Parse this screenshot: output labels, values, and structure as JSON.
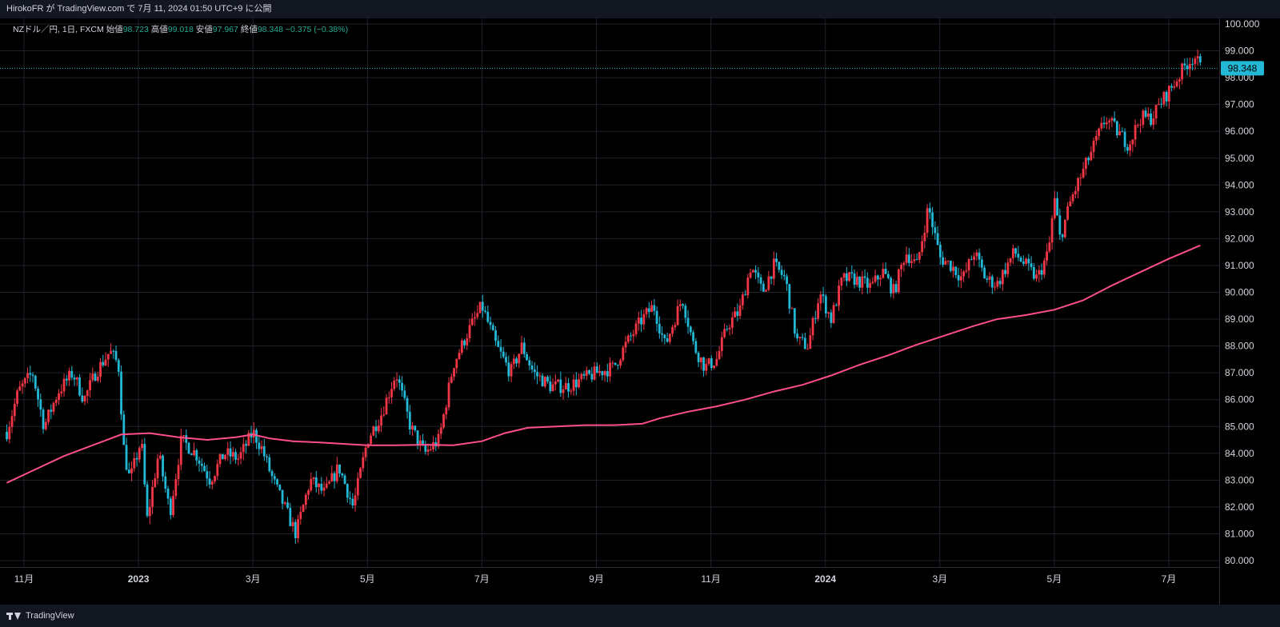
{
  "header": {
    "publish_text": "HirokoFR が TradingView.com で 7月 11, 2024 01:50 UTC+9 に公開"
  },
  "legend": {
    "symbol": "NZドル／円, 1日, FXCM",
    "open_label": "始値",
    "open": "98.723",
    "high_label": "高値",
    "high": "99.018",
    "low_label": "安値",
    "low": "97.967",
    "close_label": "終値",
    "close": "98.348",
    "change": "−0.375 (−0.38%)"
  },
  "footer": {
    "brand": "TradingView"
  },
  "colors": {
    "up": "#f23645",
    "down": "#22b8d6",
    "ma": "#ff4f8b",
    "grid": "#1e222d",
    "price_tag_bg": "#22b8d6",
    "background": "#000000"
  },
  "chart_data": {
    "type": "candlestick",
    "ylim": [
      80,
      100
    ],
    "y_ticks": [
      "80.000",
      "81.000",
      "82.000",
      "83.000",
      "84.000",
      "85.000",
      "86.000",
      "87.000",
      "88.000",
      "89.000",
      "90.000",
      "91.000",
      "92.000",
      "93.000",
      "94.000",
      "95.000",
      "96.000",
      "97.000",
      "98.000",
      "99.000",
      "100.000"
    ],
    "x_ticks": [
      {
        "label": "11月",
        "t": 0.0,
        "bold": false
      },
      {
        "label": "2023",
        "t": 2.0,
        "bold": true
      },
      {
        "label": "3月",
        "t": 4.0,
        "bold": false
      },
      {
        "label": "5月",
        "t": 6.0,
        "bold": false
      },
      {
        "label": "7月",
        "t": 8.0,
        "bold": false
      },
      {
        "label": "9月",
        "t": 10.0,
        "bold": false
      },
      {
        "label": "11月",
        "t": 12.0,
        "bold": false
      },
      {
        "label": "2024",
        "t": 14.0,
        "bold": true
      },
      {
        "label": "3月",
        "t": 16.0,
        "bold": false
      },
      {
        "label": "5月",
        "t": 18.0,
        "bold": false
      },
      {
        "label": "7月",
        "t": 20.0,
        "bold": false
      }
    ],
    "last_price": "98.348",
    "price_path": [
      [
        -0.3,
        84.8
      ],
      [
        -0.1,
        86.3
      ],
      [
        0.15,
        87.0
      ],
      [
        0.35,
        85.0
      ],
      [
        0.6,
        86.3
      ],
      [
        0.85,
        87.0
      ],
      [
        1.05,
        86.0
      ],
      [
        1.25,
        87.0
      ],
      [
        1.5,
        87.8
      ],
      [
        1.65,
        87.3
      ],
      [
        1.75,
        84.0
      ],
      [
        1.85,
        83.0
      ],
      [
        2.05,
        84.5
      ],
      [
        2.15,
        81.5
      ],
      [
        2.35,
        84.0
      ],
      [
        2.55,
        81.8
      ],
      [
        2.75,
        84.5
      ],
      [
        3.0,
        84.0
      ],
      [
        3.25,
        83.0
      ],
      [
        3.5,
        84.0
      ],
      [
        3.75,
        83.8
      ],
      [
        4.0,
        84.8
      ],
      [
        4.15,
        84.2
      ],
      [
        4.35,
        83.0
      ],
      [
        4.55,
        82.0
      ],
      [
        4.75,
        81.0
      ],
      [
        5.0,
        83.0
      ],
      [
        5.25,
        82.5
      ],
      [
        5.5,
        83.5
      ],
      [
        5.75,
        82.0
      ],
      [
        6.0,
        84.5
      ],
      [
        6.25,
        85.5
      ],
      [
        6.5,
        87.0
      ],
      [
        6.75,
        85.0
      ],
      [
        7.0,
        84.0
      ],
      [
        7.25,
        84.5
      ],
      [
        7.5,
        87.3
      ],
      [
        7.75,
        88.5
      ],
      [
        8.0,
        89.5
      ],
      [
        8.25,
        88.0
      ],
      [
        8.5,
        87.0
      ],
      [
        8.7,
        88.0
      ],
      [
        8.9,
        87.0
      ],
      [
        9.2,
        86.5
      ],
      [
        9.5,
        86.5
      ],
      [
        9.8,
        86.8
      ],
      [
        10.0,
        87.0
      ],
      [
        10.3,
        87.2
      ],
      [
        10.5,
        88.0
      ],
      [
        10.8,
        89.0
      ],
      [
        11.0,
        89.5
      ],
      [
        11.2,
        88.0
      ],
      [
        11.5,
        89.8
      ],
      [
        11.7,
        88.0
      ],
      [
        11.9,
        87.2
      ],
      [
        12.1,
        87.5
      ],
      [
        12.3,
        88.8
      ],
      [
        12.5,
        89.3
      ],
      [
        12.7,
        91.0
      ],
      [
        12.9,
        90.0
      ],
      [
        13.1,
        91.0
      ],
      [
        13.3,
        90.5
      ],
      [
        13.5,
        88.2
      ],
      [
        13.7,
        88.0
      ],
      [
        13.9,
        90.0
      ],
      [
        14.1,
        89.0
      ],
      [
        14.3,
        90.5
      ],
      [
        14.5,
        90.5
      ],
      [
        14.8,
        90.2
      ],
      [
        15.0,
        90.8
      ],
      [
        15.2,
        90.0
      ],
      [
        15.4,
        91.5
      ],
      [
        15.6,
        91.0
      ],
      [
        15.8,
        93.2
      ],
      [
        16.0,
        91.3
      ],
      [
        16.2,
        91.0
      ],
      [
        16.4,
        90.5
      ],
      [
        16.6,
        91.5
      ],
      [
        16.8,
        90.5
      ],
      [
        17.0,
        90.3
      ],
      [
        17.3,
        91.5
      ],
      [
        17.5,
        91.0
      ],
      [
        17.7,
        90.5
      ],
      [
        17.9,
        91.5
      ],
      [
        18.0,
        93.5
      ],
      [
        18.1,
        92.0
      ],
      [
        18.3,
        93.5
      ],
      [
        18.5,
        94.5
      ],
      [
        18.7,
        95.5
      ],
      [
        18.9,
        96.5
      ],
      [
        19.1,
        96.0
      ],
      [
        19.3,
        95.5
      ],
      [
        19.5,
        96.5
      ],
      [
        19.7,
        96.5
      ],
      [
        19.9,
        97.2
      ],
      [
        20.1,
        97.8
      ],
      [
        20.3,
        98.5
      ],
      [
        20.45,
        98.8
      ],
      [
        20.55,
        98.35
      ]
    ],
    "ma_path": [
      [
        -0.3,
        82.9
      ],
      [
        0.2,
        83.4
      ],
      [
        0.7,
        83.9
      ],
      [
        1.2,
        84.3
      ],
      [
        1.7,
        84.7
      ],
      [
        2.2,
        84.75
      ],
      [
        2.7,
        84.6
      ],
      [
        3.2,
        84.5
      ],
      [
        3.7,
        84.6
      ],
      [
        4.0,
        84.7
      ],
      [
        4.3,
        84.55
      ],
      [
        4.7,
        84.45
      ],
      [
        5.2,
        84.4
      ],
      [
        5.6,
        84.35
      ],
      [
        6.0,
        84.3
      ],
      [
        6.5,
        84.3
      ],
      [
        7.0,
        84.32
      ],
      [
        7.5,
        84.3
      ],
      [
        8.0,
        84.45
      ],
      [
        8.4,
        84.75
      ],
      [
        8.8,
        84.95
      ],
      [
        9.3,
        85.0
      ],
      [
        9.8,
        85.05
      ],
      [
        10.3,
        85.05
      ],
      [
        10.8,
        85.1
      ],
      [
        11.1,
        85.3
      ],
      [
        11.6,
        85.55
      ],
      [
        12.1,
        85.75
      ],
      [
        12.6,
        86.0
      ],
      [
        13.1,
        86.3
      ],
      [
        13.6,
        86.55
      ],
      [
        14.1,
        86.9
      ],
      [
        14.6,
        87.3
      ],
      [
        15.1,
        87.65
      ],
      [
        15.6,
        88.05
      ],
      [
        16.1,
        88.4
      ],
      [
        16.6,
        88.75
      ],
      [
        17.0,
        89.0
      ],
      [
        17.5,
        89.15
      ],
      [
        18.0,
        89.35
      ],
      [
        18.5,
        89.7
      ],
      [
        19.0,
        90.25
      ],
      [
        19.5,
        90.75
      ],
      [
        20.0,
        91.25
      ],
      [
        20.55,
        91.75
      ]
    ]
  }
}
